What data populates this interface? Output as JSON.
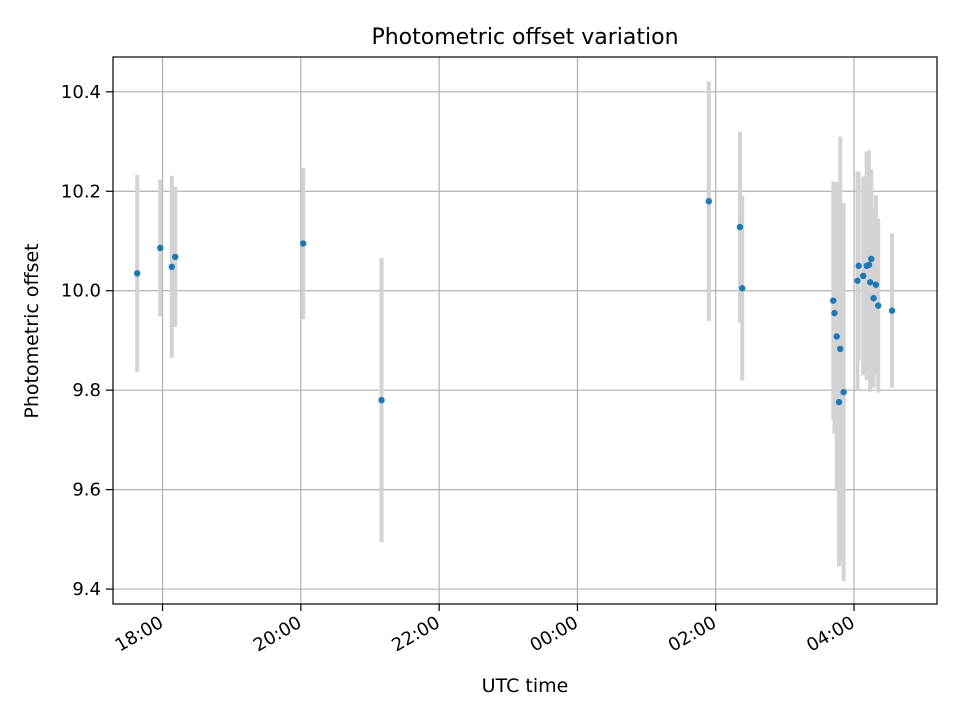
{
  "chart_data": {
    "type": "scatter",
    "title": "Photometric offset variation",
    "xlabel": "UTC time",
    "ylabel": "Photometric offset",
    "grid": true,
    "legend": false,
    "colors": {
      "point": "#1f77b4",
      "errorbar": "#d3d3d3",
      "grid": "#b0b0b0",
      "axis": "#000000"
    },
    "x_unit": "UTC time (next day after 24:00)",
    "xlim": [
      "17:17",
      "05:12"
    ],
    "ylim": [
      9.37,
      10.47
    ],
    "xticks": [
      "18:00",
      "20:00",
      "22:00",
      "00:00",
      "02:00",
      "04:00"
    ],
    "yticks": [
      "9.4",
      "9.6",
      "9.8",
      "10.0",
      "10.2",
      "10.4"
    ],
    "points": [
      {
        "x": "17:38",
        "y": 10.035,
        "err": 0.198
      },
      {
        "x": "17:58",
        "y": 10.086,
        "err": 0.138
      },
      {
        "x": "18:08",
        "y": 10.048,
        "err": 0.183
      },
      {
        "x": "18:11",
        "y": 10.068,
        "err": 0.141
      },
      {
        "x": "20:02",
        "y": 10.095,
        "err": 0.152
      },
      {
        "x": "21:10",
        "y": 9.78,
        "err": 0.286
      },
      {
        "x": "01:54",
        "y": 10.18,
        "err": 0.241
      },
      {
        "x": "02:21",
        "y": 10.128,
        "err": 0.192
      },
      {
        "x": "02:23",
        "y": 10.005,
        "err": 0.186
      },
      {
        "x": "03:42",
        "y": 9.98,
        "err": 0.24
      },
      {
        "x": "03:43",
        "y": 9.955,
        "err": 0.242
      },
      {
        "x": "03:45",
        "y": 9.908,
        "err": 0.311
      },
      {
        "x": "03:47",
        "y": 9.776,
        "err": 0.33
      },
      {
        "x": "03:48",
        "y": 9.883,
        "err": 0.427
      },
      {
        "x": "03:51",
        "y": 9.796,
        "err": 0.38
      },
      {
        "x": "04:03",
        "y": 10.02,
        "err": 0.22
      },
      {
        "x": "04:04",
        "y": 10.05,
        "err": 0.19
      },
      {
        "x": "04:08",
        "y": 10.03,
        "err": 0.2
      },
      {
        "x": "04:11",
        "y": 10.05,
        "err": 0.23
      },
      {
        "x": "04:13",
        "y": 10.052,
        "err": 0.23
      },
      {
        "x": "04:14",
        "y": 10.017,
        "err": 0.22
      },
      {
        "x": "04:15",
        "y": 10.064,
        "err": 0.18
      },
      {
        "x": "04:17",
        "y": 9.985,
        "err": 0.18
      },
      {
        "x": "04:19",
        "y": 10.012,
        "err": 0.18
      },
      {
        "x": "04:21",
        "y": 9.97,
        "err": 0.175
      },
      {
        "x": "04:33",
        "y": 9.96,
        "err": 0.155
      }
    ]
  }
}
